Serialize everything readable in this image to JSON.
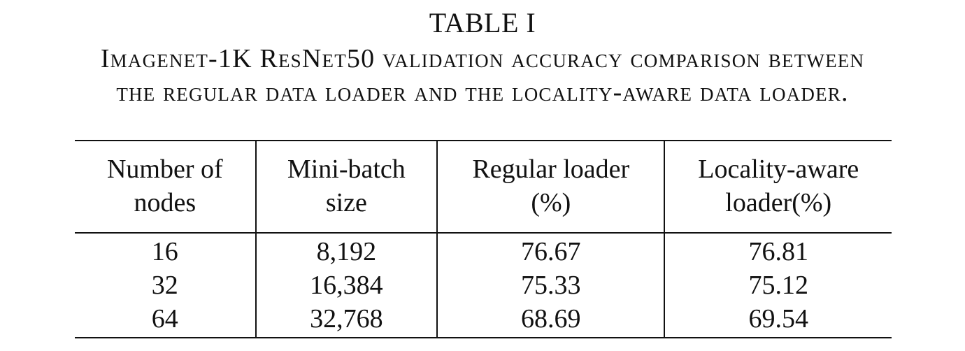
{
  "table_label": "TABLE I",
  "caption": {
    "line1": "Imagenet-1K ResNet50 validation accuracy comparison between",
    "line2": "the regular data loader and the locality-aware data loader."
  },
  "table": {
    "headers": [
      {
        "line1": "Number of",
        "line2": "nodes"
      },
      {
        "line1": "Mini-batch",
        "line2": "size"
      },
      {
        "line1": "Regular loader",
        "line2": "(%)"
      },
      {
        "line1": "Locality-aware",
        "line2": "loader(%)"
      }
    ],
    "rows": [
      {
        "nodes": "16",
        "batch": "8,192",
        "regular": "76.67",
        "locality": "76.81"
      },
      {
        "nodes": "32",
        "batch": "16,384",
        "regular": "75.33",
        "locality": "75.12"
      },
      {
        "nodes": "64",
        "batch": "32,768",
        "regular": "68.69",
        "locality": "69.54"
      }
    ]
  }
}
